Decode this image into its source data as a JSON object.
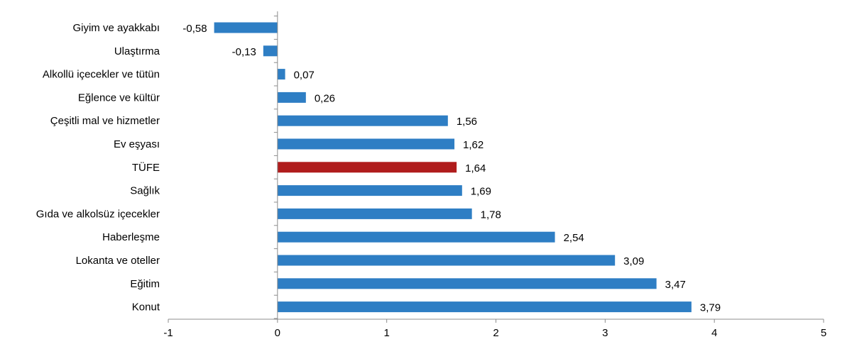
{
  "chart_data": {
    "type": "bar",
    "orientation": "horizontal",
    "categories": [
      "Giyim ve ayakkabı",
      "Ulaştırma",
      "Alkollü içecekler ve tütün",
      "Eğlence ve kültür",
      "Çeşitli mal ve hizmetler",
      "Ev eşyası",
      "TÜFE",
      "Sağlık",
      "Gıda ve alkolsüz içecekler",
      "Haberleşme",
      "Lokanta ve oteller",
      "Eğitim",
      "Konut"
    ],
    "values": [
      -0.58,
      -0.13,
      0.07,
      0.26,
      1.56,
      1.62,
      1.64,
      1.69,
      1.78,
      2.54,
      3.09,
      3.47,
      3.79
    ],
    "value_labels": [
      "-0,58",
      "-0,13",
      "0,07",
      "0,26",
      "1,56",
      "1,62",
      "1,64",
      "1,69",
      "1,78",
      "2,54",
      "3,09",
      "3,47",
      "3,79"
    ],
    "xlim": [
      -1,
      5
    ],
    "x_ticks": [
      -1,
      0,
      1,
      2,
      3,
      4,
      5
    ],
    "x_tick_labels": [
      "-1",
      "0",
      "1",
      "2",
      "3",
      "4",
      "5"
    ],
    "grid": false,
    "legend": "none",
    "title": "",
    "xlabel": "",
    "ylabel": "",
    "colors": {
      "bar": "#2E7EC4",
      "highlight": "#B01C1C",
      "axis": "#8C8C8C"
    },
    "highlight_category": "TÜFE"
  }
}
